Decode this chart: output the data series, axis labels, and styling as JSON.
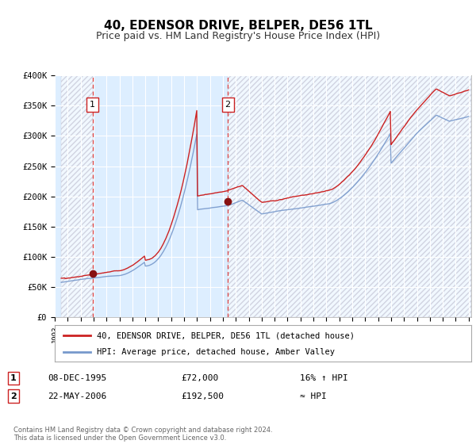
{
  "title": "40, EDENSOR DRIVE, BELPER, DE56 1TL",
  "subtitle": "Price paid vs. HM Land Registry's House Price Index (HPI)",
  "title_fontsize": 11,
  "subtitle_fontsize": 9,
  "background_color": "#ffffff",
  "plot_bg_color": "#ddeeff",
  "grid_color": "#ccccdd",
  "xlim": [
    1993.5,
    2025.2
  ],
  "ylim": [
    0,
    400000
  ],
  "yticks": [
    0,
    50000,
    100000,
    150000,
    200000,
    250000,
    300000,
    350000,
    400000
  ],
  "ytick_labels": [
    "£0",
    "£50K",
    "£100K",
    "£150K",
    "£200K",
    "£250K",
    "£300K",
    "£350K",
    "£400K"
  ],
  "xticks": [
    1993,
    1994,
    1995,
    1996,
    1997,
    1998,
    1999,
    2000,
    2001,
    2002,
    2003,
    2004,
    2005,
    2006,
    2007,
    2008,
    2009,
    2010,
    2011,
    2012,
    2013,
    2014,
    2015,
    2016,
    2017,
    2018,
    2019,
    2020,
    2021,
    2022,
    2023,
    2024,
    2025
  ],
  "sale1_year": 1995.92,
  "sale1_price": 72000,
  "sale1_label": "1",
  "sale1_date": "08-DEC-1995",
  "sale1_amount": "£72,000",
  "sale1_note": "16% ↑ HPI",
  "sale2_year": 2006.38,
  "sale2_price": 192500,
  "sale2_label": "2",
  "sale2_date": "22-MAY-2006",
  "sale2_amount": "£192,500",
  "sale2_note": "≈ HPI",
  "red_color": "#cc2222",
  "blue_color": "#7799cc",
  "marker_color": "#881111",
  "dashed_color": "#dd4444",
  "hatch_color": "#bbbbcc",
  "shade_color": "#ddeeff",
  "legend_red": "40, EDENSOR DRIVE, BELPER, DE56 1TL (detached house)",
  "legend_blue": "HPI: Average price, detached house, Amber Valley",
  "footer": "Contains HM Land Registry data © Crown copyright and database right 2024.\nThis data is licensed under the Open Government Licence v3.0."
}
